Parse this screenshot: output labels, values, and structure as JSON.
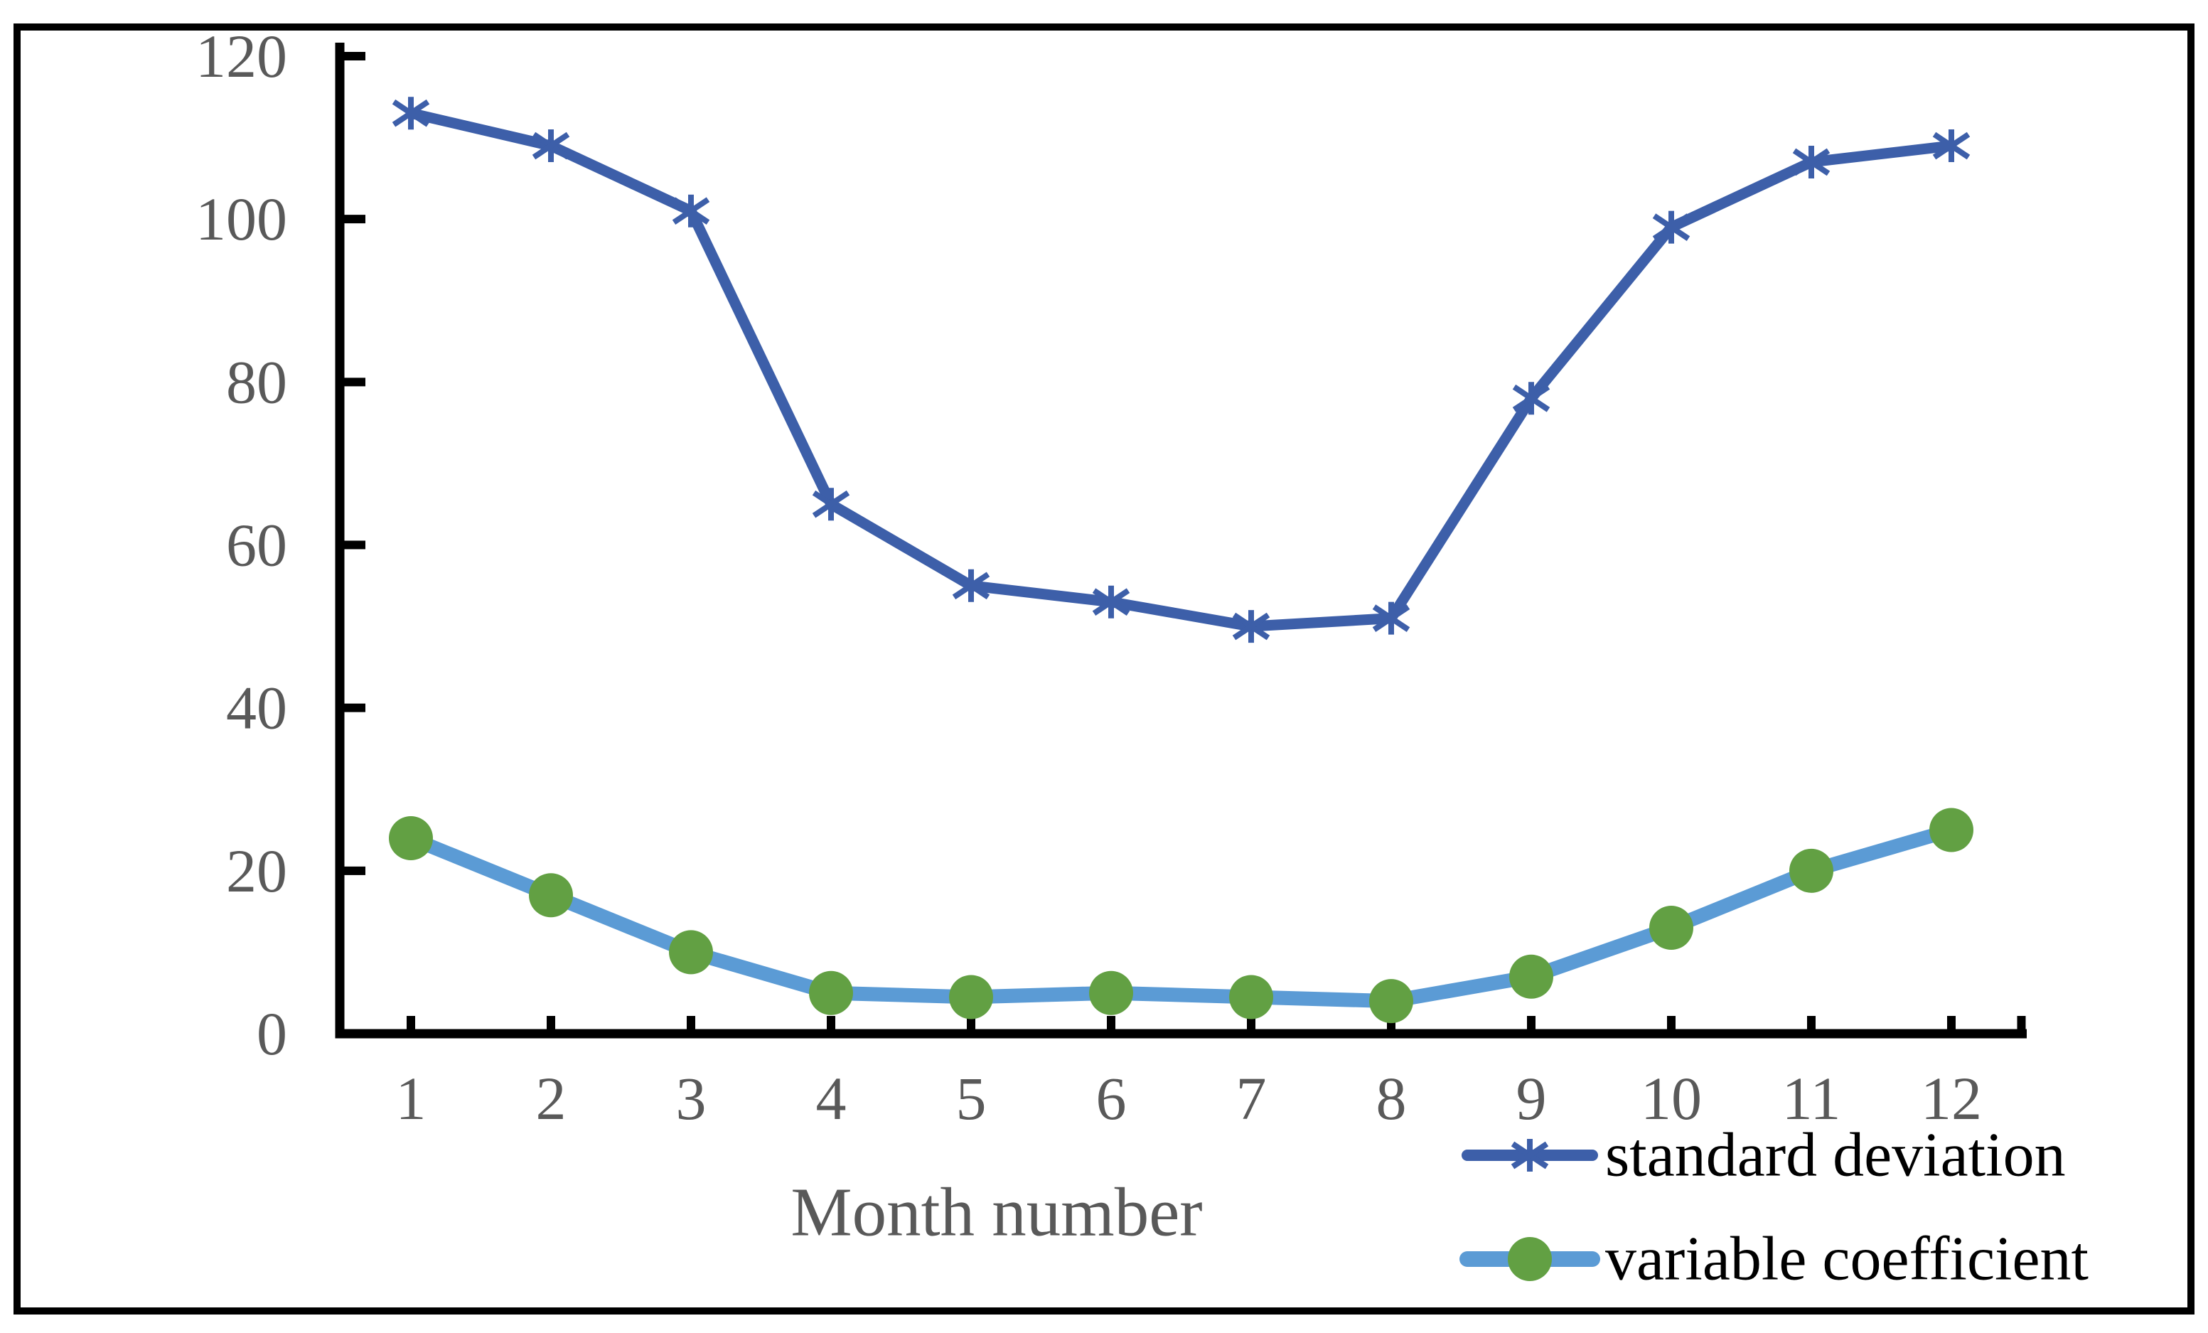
{
  "chart_data": {
    "type": "line",
    "title": "",
    "xlabel": "Month number",
    "ylabel": "",
    "categories": [
      "1",
      "2",
      "3",
      "4",
      "5",
      "6",
      "7",
      "8",
      "9",
      "10",
      "11",
      "12"
    ],
    "series": [
      {
        "name": "standard deviation",
        "marker": "asterisk",
        "line_color": "#3d5fa9",
        "marker_color": "#3d5fa9",
        "values": [
          113,
          109,
          101,
          65,
          55,
          53,
          50,
          51,
          78,
          99,
          107,
          109
        ]
      },
      {
        "name": "variable coefficient",
        "marker": "circle",
        "line_color": "#5b9bd5",
        "marker_color": "#62a043",
        "values": [
          24,
          17,
          10,
          5,
          4.5,
          5,
          4.5,
          4,
          7,
          13,
          20,
          25
        ]
      }
    ],
    "ylim": [
      0,
      120
    ],
    "y_ticks": [
      0,
      20,
      40,
      60,
      80,
      100,
      120
    ],
    "grid": false,
    "legend_position": "bottom-right",
    "axis_color": "#000000",
    "border_color": "#000000",
    "tick_label_color": "#595959"
  }
}
